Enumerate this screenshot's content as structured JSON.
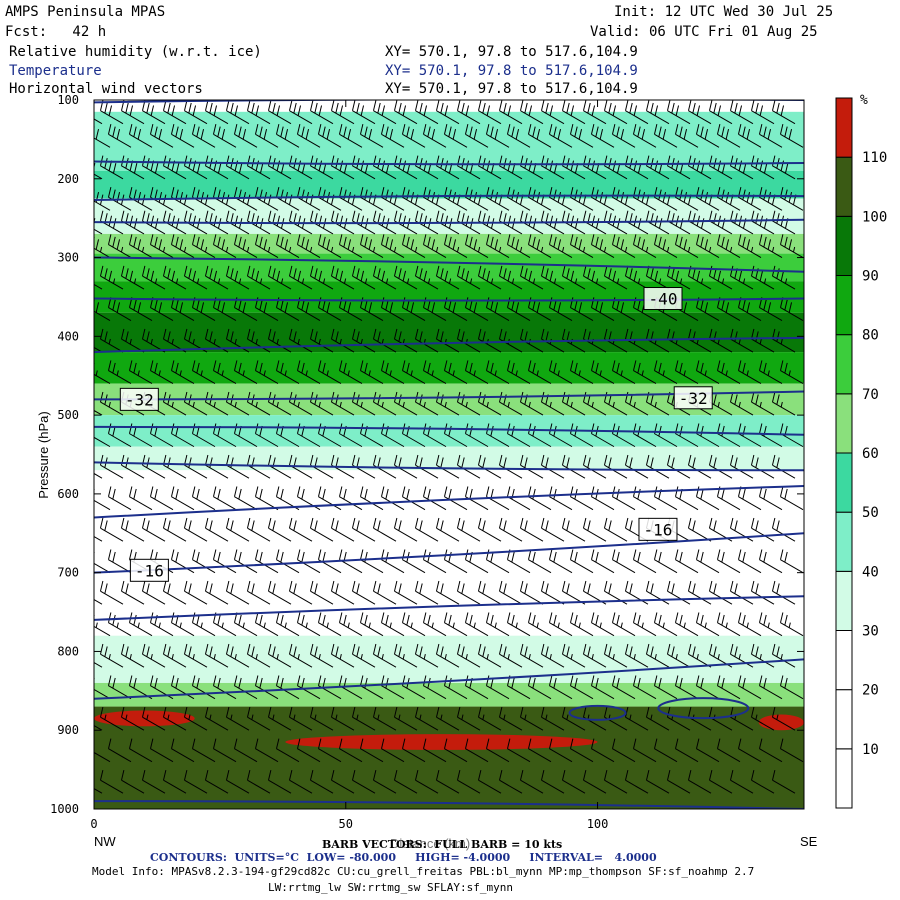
{
  "header": {
    "model": "AMPS Peninsula MPAS",
    "init": "Init: 12 UTC Wed 30 Jul 25",
    "fcst": "Fcst:   42 h",
    "valid": "Valid: 06 UTC Fri 01 Aug 25",
    "fields": [
      {
        "name": "Relative humidity (w.r.t. ice)",
        "xy": "XY= 570.1, 97.8 to 517.6,104.9"
      },
      {
        "name": "Temperature",
        "xy": "XY= 570.1, 97.8 to 517.6,104.9"
      },
      {
        "name": "Horizontal wind vectors",
        "xy": "XY= 570.1, 97.8 to 517.6,104.9"
      }
    ]
  },
  "footer": {
    "barb_line": "BARB VECTORS:  FULL BARB = 10 kts",
    "xlabel_overlap": "Distance (km)",
    "contours_line": "CONTOURS:  UNITS=°C  LOW= -80.000     HIGH= -4.0000     INTERVAL=   4.0000",
    "model_info": "Model Info: MPASv8.2.3-194-gf29cd82c CU:cu_grell_freitas PBL:bl_mynn MP:mp_thompson SF:sf_noahmp 2.7",
    "model_info2": "LW:rrtmg_lw SW:rrtmg_sw SFLAY:sf_mynn"
  },
  "chart_data": {
    "type": "heatmap",
    "xlabel": "Distance (km)",
    "ylabel": "Pressure (hPa)",
    "x_range": [
      0,
      141
    ],
    "y_range": [
      1000,
      100
    ],
    "x_ticks": [
      0,
      50,
      100
    ],
    "y_ticks": [
      100,
      200,
      300,
      400,
      500,
      600,
      700,
      800,
      900,
      1000
    ],
    "x_end_labels": {
      "left": "NW",
      "right": "SE"
    },
    "colorbar": {
      "unit": "%",
      "levels": [
        10,
        20,
        30,
        40,
        50,
        60,
        70,
        80,
        90,
        100,
        110
      ],
      "colors": [
        "#ffffff",
        "#ffffff",
        "#ffffff",
        "#d2fbe6",
        "#7eeec8",
        "#3cd9a0",
        "#8ae07c",
        "#3ccd3c",
        "#10a810",
        "#087808",
        "#3a5a14",
        "#c41c0c"
      ]
    },
    "rh_bands": [
      {
        "p_top": 115,
        "p_bot": 190,
        "rh": 45
      },
      {
        "p_top": 190,
        "p_bot": 225,
        "rh": 55
      },
      {
        "p_top": 225,
        "p_bot": 270,
        "rh": 30
      },
      {
        "p_top": 270,
        "p_bot": 295,
        "rh": 65
      },
      {
        "p_top": 295,
        "p_bot": 330,
        "rh": 70
      },
      {
        "p_top": 330,
        "p_bot": 370,
        "rh": 82
      },
      {
        "p_top": 370,
        "p_bot": 420,
        "rh": 95
      },
      {
        "p_top": 420,
        "p_bot": 460,
        "rh": 85
      },
      {
        "p_top": 460,
        "p_bot": 500,
        "rh": 65
      },
      {
        "p_top": 500,
        "p_bot": 540,
        "rh": 45
      },
      {
        "p_top": 540,
        "p_bot": 570,
        "rh": 35
      },
      {
        "p_top": 570,
        "p_bot": 780,
        "rh": 20
      },
      {
        "p_top": 780,
        "p_bot": 840,
        "rh": 35
      },
      {
        "p_top": 840,
        "p_bot": 870,
        "rh": 65
      },
      {
        "p_top": 870,
        "p_bot": 1000,
        "rh": 105
      }
    ],
    "rh_maxima": [
      {
        "x": [
          0,
          20
        ],
        "p": [
          875,
          895
        ],
        "rh": 112
      },
      {
        "x": [
          38,
          100
        ],
        "p": [
          905,
          925
        ],
        "rh": 112
      },
      {
        "x": [
          132,
          141
        ],
        "p": [
          880,
          900
        ],
        "rh": 112
      }
    ],
    "temperature_contours": [
      {
        "x": [
          0,
          141
        ],
        "p": [
          103,
          100
        ],
        "t": -60
      },
      {
        "x": [
          0,
          141
        ],
        "p": [
          178,
          180
        ],
        "t": -56
      },
      {
        "x": [
          0,
          141
        ],
        "p": [
          227,
          222
        ],
        "t": -52
      },
      {
        "x": [
          0,
          141
        ],
        "p": [
          255,
          252
        ],
        "t": -52
      },
      {
        "x": [
          0,
          141
        ],
        "p": [
          300,
          318
        ],
        "t": -48
      },
      {
        "x": [
          0,
          141
        ],
        "p": [
          352,
          352
        ],
        "t": -40
      },
      {
        "x": [
          0,
          141
        ],
        "p": [
          420,
          402
        ],
        "t": -36
      },
      {
        "x": [
          0,
          141
        ],
        "p": [
          480,
          470
        ],
        "t": -32
      },
      {
        "x": [
          0,
          141
        ],
        "p": [
          515,
          525
        ],
        "t": -28
      },
      {
        "x": [
          0,
          141
        ],
        "p": [
          560,
          570
        ],
        "t": -24
      },
      {
        "x": [
          0,
          141
        ],
        "p": [
          630,
          590
        ],
        "t": -20
      },
      {
        "x": [
          0,
          141
        ],
        "p": [
          700,
          650
        ],
        "t": -16
      },
      {
        "x": [
          0,
          141
        ],
        "p": [
          760,
          730
        ],
        "t": -12
      },
      {
        "x": [
          0,
          141
        ],
        "p": [
          860,
          810
        ],
        "t": -8
      },
      {
        "x": [
          0,
          141
        ],
        "p": [
          990,
          1000
        ],
        "t": -4
      }
    ],
    "contour_labels": [
      {
        "x": 113,
        "p": 352,
        "text": "-40"
      },
      {
        "x": 9,
        "p": 480,
        "text": "-32"
      },
      {
        "x": 119,
        "p": 478,
        "text": "-32"
      },
      {
        "x": 112,
        "p": 645,
        "text": "-16"
      },
      {
        "x": 11,
        "p": 697,
        "text": "-16"
      }
    ],
    "wind": {
      "full_barb_kts": 10,
      "direction_deg": 300,
      "levels_hpa": [
        130,
        160,
        200,
        240,
        270,
        300,
        340,
        380,
        420,
        460,
        500,
        540,
        580,
        620,
        660,
        700,
        740,
        780,
        820,
        860,
        900,
        940,
        980
      ],
      "speed_kts": [
        30,
        30,
        40,
        40,
        40,
        35,
        35,
        30,
        25,
        25,
        25,
        20,
        20,
        20,
        20,
        20,
        20,
        25,
        25,
        20,
        15,
        10,
        10
      ]
    }
  }
}
